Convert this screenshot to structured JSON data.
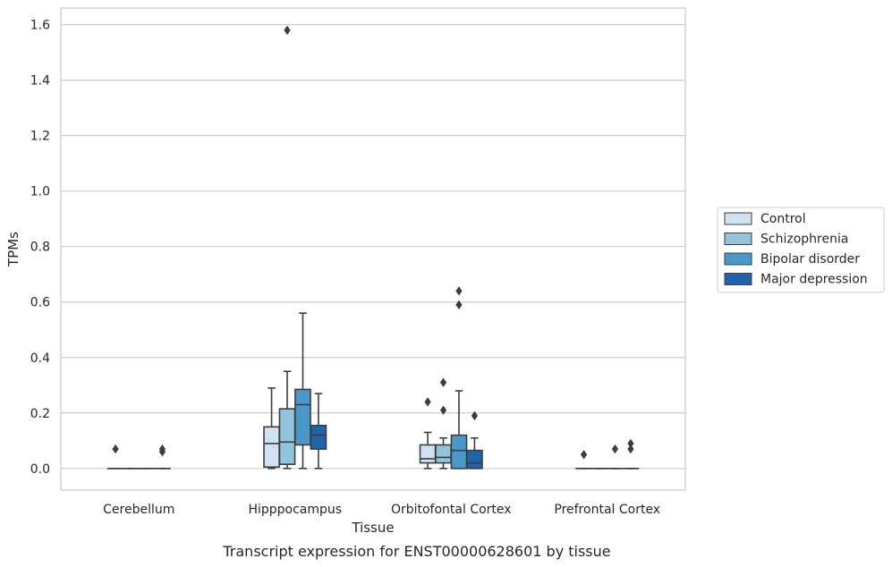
{
  "chart_data": {
    "type": "box",
    "title": "",
    "caption": "Transcript expression for ENST00000628601 by tissue",
    "xlabel": "Tissue",
    "ylabel": "TPMs",
    "ylim": [
      -0.078,
      1.66
    ],
    "yticks": [
      0.0,
      0.2,
      0.4,
      0.6,
      0.8,
      1.0,
      1.2,
      1.4,
      1.6
    ],
    "ytick_labels": [
      "0.0",
      "0.2",
      "0.4",
      "0.6",
      "0.8",
      "1.0",
      "1.2",
      "1.4",
      "1.6"
    ],
    "grid": "horizontal",
    "legend_position": "right",
    "categories": [
      "Cerebellum",
      "Hipppocampus",
      "Orbitofontal Cortex",
      "Prefrontal Cortex"
    ],
    "series": [
      {
        "name": "Control",
        "color": "#cfe1f2",
        "boxes": [
          {
            "whislo": 0,
            "q1": 0,
            "med": 0,
            "q3": 0,
            "whishi": 0,
            "fliers": [
              0.07
            ]
          },
          {
            "whislo": 0.0,
            "q1": 0.005,
            "med": 0.09,
            "q3": 0.15,
            "whishi": 0.29,
            "fliers": []
          },
          {
            "whislo": 0.0,
            "q1": 0.02,
            "med": 0.035,
            "q3": 0.085,
            "whishi": 0.13,
            "fliers": [
              0.24
            ]
          },
          {
            "whislo": 0,
            "q1": 0,
            "med": 0,
            "q3": 0,
            "whishi": 0,
            "fliers": [
              0.05
            ]
          }
        ]
      },
      {
        "name": "Schizophrenia",
        "color": "#93c4de",
        "boxes": [
          {
            "whislo": 0,
            "q1": 0,
            "med": 0,
            "q3": 0,
            "whishi": 0,
            "fliers": []
          },
          {
            "whislo": 0.0,
            "q1": 0.015,
            "med": 0.095,
            "q3": 0.215,
            "whishi": 0.35,
            "fliers": [
              1.58
            ]
          },
          {
            "whislo": 0.0,
            "q1": 0.02,
            "med": 0.04,
            "q3": 0.085,
            "whishi": 0.11,
            "fliers": [
              0.31,
              0.21
            ]
          },
          {
            "whislo": 0,
            "q1": 0,
            "med": 0,
            "q3": 0,
            "whishi": 0,
            "fliers": []
          }
        ]
      },
      {
        "name": "Bipolar disorder",
        "color": "#4a98c9",
        "boxes": [
          {
            "whislo": 0,
            "q1": 0,
            "med": 0,
            "q3": 0,
            "whishi": 0,
            "fliers": []
          },
          {
            "whislo": 0.0,
            "q1": 0.085,
            "med": 0.23,
            "q3": 0.285,
            "whishi": 0.56,
            "fliers": []
          },
          {
            "whislo": 0.0,
            "q1": 0.0,
            "med": 0.065,
            "q3": 0.12,
            "whishi": 0.28,
            "fliers": [
              0.64,
              0.59
            ]
          },
          {
            "whislo": 0,
            "q1": 0,
            "med": 0,
            "q3": 0,
            "whishi": 0,
            "fliers": [
              0.07
            ]
          }
        ]
      },
      {
        "name": "Major depression",
        "color": "#2163aa",
        "boxes": [
          {
            "whislo": 0,
            "q1": 0,
            "med": 0,
            "q3": 0,
            "whishi": 0,
            "fliers": [
              0.07,
              0.06
            ]
          },
          {
            "whislo": 0.0,
            "q1": 0.07,
            "med": 0.12,
            "q3": 0.155,
            "whishi": 0.27,
            "fliers": []
          },
          {
            "whislo": 0.0,
            "q1": 0.0,
            "med": 0.02,
            "q3": 0.065,
            "whishi": 0.11,
            "fliers": [
              0.19
            ]
          },
          {
            "whislo": 0,
            "q1": 0,
            "med": 0,
            "q3": 0,
            "whishi": 0,
            "fliers": [
              0.09,
              0.07
            ]
          }
        ]
      }
    ]
  }
}
